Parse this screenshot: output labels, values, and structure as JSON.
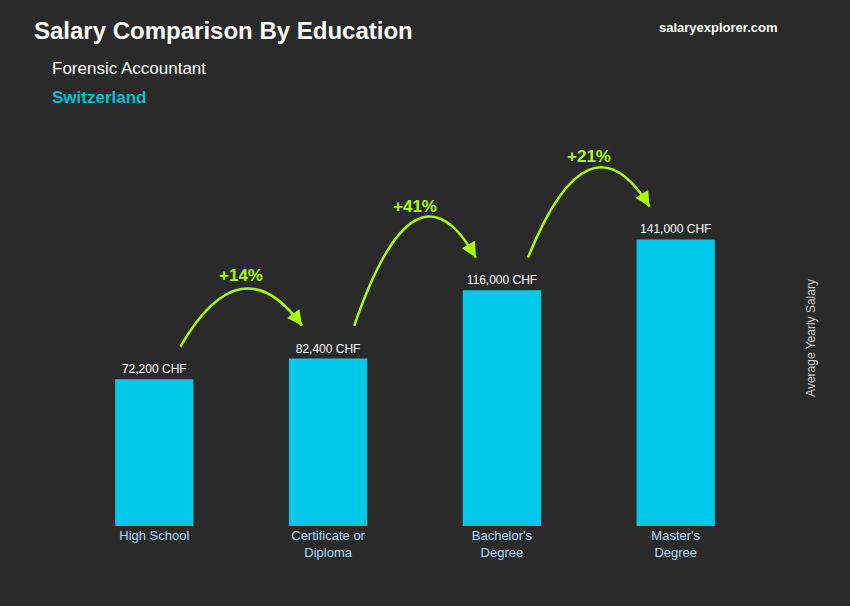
{
  "chart_data": {
    "type": "bar",
    "title": "Salary Comparison By Education",
    "subtitle": "Forensic Accountant",
    "country": "Switzerland",
    "ylabel": "Average Yearly Salary",
    "brand": "salaryexplorer.com",
    "categories": [
      "High School",
      "Certificate or\nDiploma",
      "Bachelor's\nDegree",
      "Master's\nDegree"
    ],
    "values": [
      72200,
      82400,
      116000,
      141000
    ],
    "value_labels": [
      "72,200 CHF",
      "82,400 CHF",
      "116,000 CHF",
      "141,000 CHF"
    ],
    "data_labels": true,
    "color": "#00c8e8",
    "annotations": [
      {
        "text": "+14%",
        "color": "#aaff00"
      },
      {
        "text": "+41%",
        "color": "#aaff00"
      },
      {
        "text": "+21%",
        "color": "#aaff00"
      }
    ],
    "ylim": [
      0,
      185000
    ],
    "grid": false,
    "tick_labels": "x"
  }
}
